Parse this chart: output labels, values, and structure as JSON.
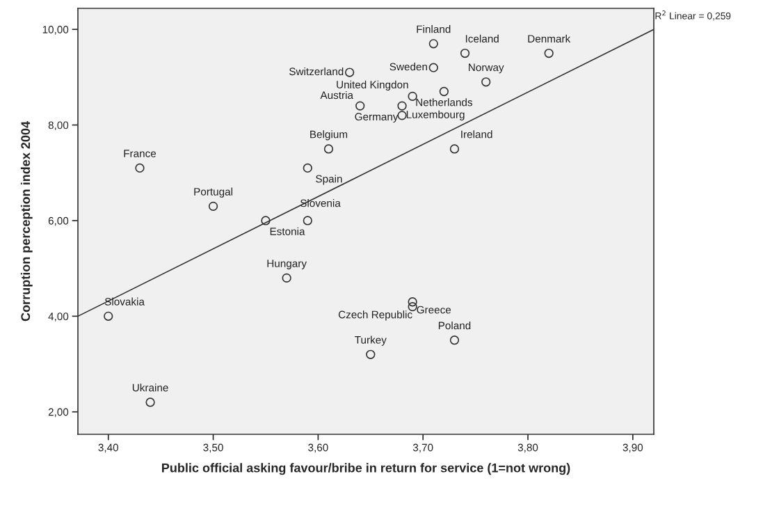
{
  "chart_data": {
    "type": "scatter",
    "xlabel": "Public official asking favour/bribe in return for service (1=not wrong)",
    "ylabel": "Corruption perception index 2004",
    "xlim": [
      3.371,
      3.92
    ],
    "ylim": [
      1.53,
      10.44
    ],
    "xticks": [
      {
        "value": 3.4,
        "label": "3,40"
      },
      {
        "value": 3.5,
        "label": "3,50"
      },
      {
        "value": 3.6,
        "label": "3,60"
      },
      {
        "value": 3.7,
        "label": "3,70"
      },
      {
        "value": 3.8,
        "label": "3,80"
      },
      {
        "value": 3.9,
        "label": "3,90"
      }
    ],
    "yticks": [
      {
        "value": 2,
        "label": "2,00"
      },
      {
        "value": 4,
        "label": "4,00"
      },
      {
        "value": 6,
        "label": "6,00"
      },
      {
        "value": 8,
        "label": "8,00"
      },
      {
        "value": 10,
        "label": "10,00"
      }
    ],
    "grid": false,
    "series": [
      {
        "marker": "circle",
        "color": "#333333",
        "x": [
          3.71,
          3.74,
          3.82,
          3.71,
          3.63,
          3.69,
          3.76,
          3.72,
          3.64,
          3.68,
          3.68,
          3.61,
          3.73,
          3.43,
          3.59,
          3.5,
          3.55,
          3.59,
          3.57,
          3.4,
          3.69,
          3.69,
          3.73,
          3.65,
          3.44
        ],
        "values": [
          9.7,
          9.5,
          9.5,
          9.2,
          9.1,
          8.6,
          8.9,
          8.7,
          8.4,
          8.4,
          8.2,
          7.5,
          7.5,
          7.1,
          7.1,
          6.3,
          6.0,
          6.0,
          4.8,
          4.0,
          4.2,
          4.3,
          3.5,
          3.2,
          2.2
        ]
      },
      {
        "type": "line",
        "color": "#333333",
        "x": [
          3.371,
          3.92
        ],
        "values": [
          4.0,
          10.0
        ]
      }
    ],
    "annotations": [
      {
        "text": "Finland",
        "x": 3.71,
        "y": 9.7
      },
      {
        "text": "Iceland",
        "x": 3.74,
        "y": 9.5
      },
      {
        "text": "Denmark",
        "x": 3.82,
        "y": 9.5
      },
      {
        "text": "Sweden",
        "x": 3.71,
        "y": 9.2
      },
      {
        "text": "Switzerland",
        "x": 3.63,
        "y": 9.1
      },
      {
        "text": "United Kingdon",
        "x": 3.69,
        "y": 8.6
      },
      {
        "text": "Norway",
        "x": 3.76,
        "y": 8.9
      },
      {
        "text": "Netherlands",
        "x": 3.72,
        "y": 8.7
      },
      {
        "text": "Austria",
        "x": 3.64,
        "y": 8.4
      },
      {
        "text": "Germany",
        "x": 3.68,
        "y": 8.4
      },
      {
        "text": "Luxembourg",
        "x": 3.68,
        "y": 8.2
      },
      {
        "text": "Belgium",
        "x": 3.61,
        "y": 7.5
      },
      {
        "text": "Ireland",
        "x": 3.73,
        "y": 7.5
      },
      {
        "text": "France",
        "x": 3.43,
        "y": 7.1
      },
      {
        "text": "Spain",
        "x": 3.59,
        "y": 7.1
      },
      {
        "text": "Portugal",
        "x": 3.5,
        "y": 6.3
      },
      {
        "text": "Estonia",
        "x": 3.55,
        "y": 6.0
      },
      {
        "text": "Slovenia",
        "x": 3.59,
        "y": 6.0
      },
      {
        "text": "Hungary",
        "x": 3.57,
        "y": 4.8
      },
      {
        "text": "Slovakia",
        "x": 3.4,
        "y": 4.0
      },
      {
        "text": "Czech Republic",
        "x": 3.69,
        "y": 4.2
      },
      {
        "text": "Greece",
        "x": 3.69,
        "y": 4.3
      },
      {
        "text": "Poland",
        "x": 3.73,
        "y": 3.5
      },
      {
        "text": "Turkey",
        "x": 3.65,
        "y": 3.2
      },
      {
        "text": "Ukraine",
        "x": 3.44,
        "y": 2.2
      },
      "R$^{2}$ Linear = 0,259"
    ]
  }
}
